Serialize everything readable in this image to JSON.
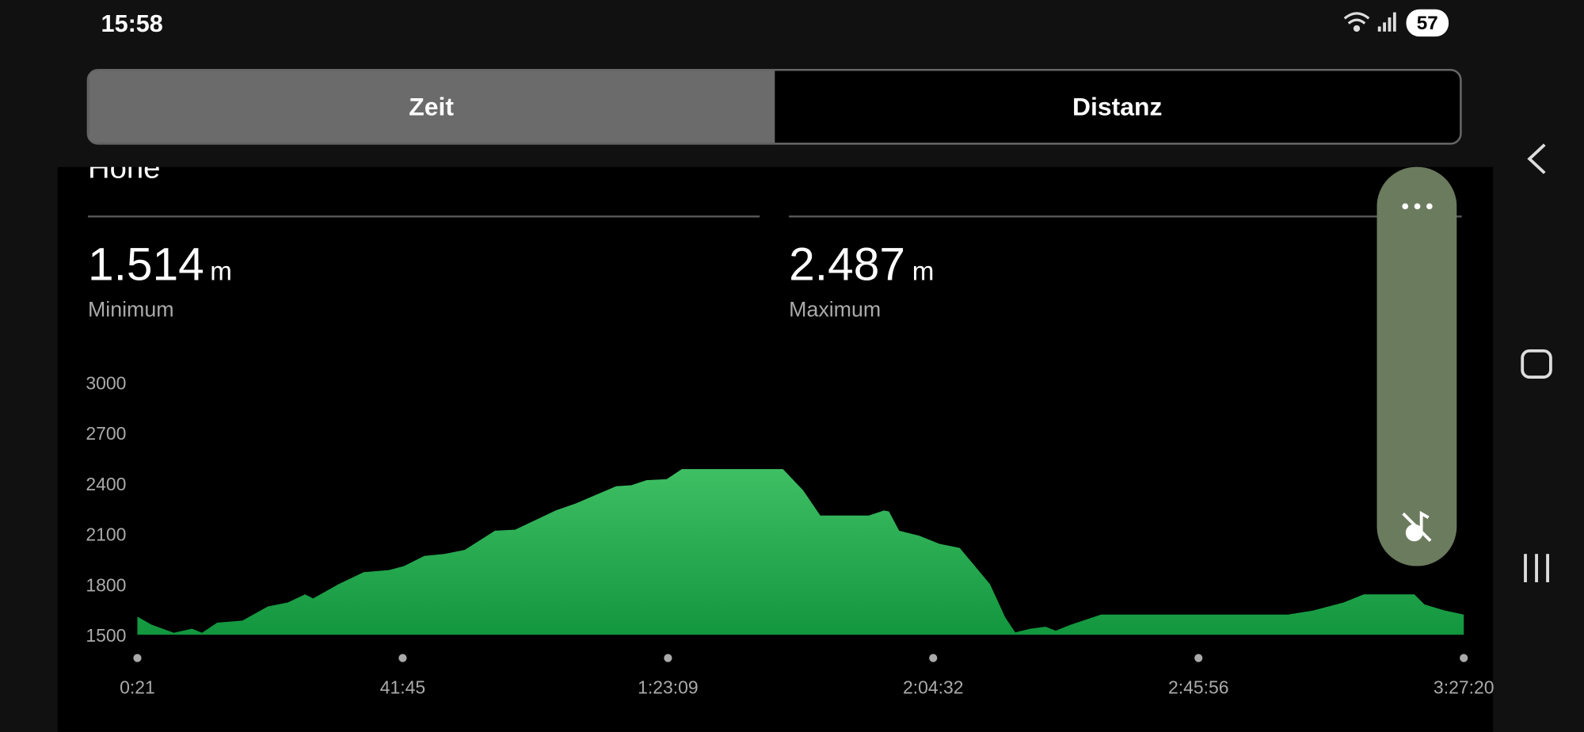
{
  "status_bar": {
    "time": "15:58",
    "battery": "57"
  },
  "tabs": [
    "Zeit",
    "Distanz"
  ],
  "section_title": "Höhe",
  "stats": [
    {
      "value": "1.514",
      "unit": "m",
      "label": "Minimum"
    },
    {
      "value": "2.487",
      "unit": "m",
      "label": "Maximum"
    }
  ],
  "chart_data": {
    "type": "area",
    "color": "#3fbf64",
    "x": [
      21,
      153,
      362,
      532,
      626,
      768,
      1005,
      1241,
      1430,
      1591,
      1667,
      1903,
      2140,
      2376,
      2518,
      2707,
      2896,
      3086,
      3369,
      3558,
      3937,
      4126,
      4504,
      4646,
      4788,
      4977,
      5119,
      6065,
      6254,
      6415,
      6869,
      7011,
      7058,
      7153,
      7342,
      7531,
      7720,
      7862,
      8004,
      8146,
      8240,
      8382,
      8524,
      8619,
      8761,
      9044,
      10085,
      10795,
      11031,
      11315,
      11504,
      11977,
      12072,
      12261,
      12440
    ],
    "values": [
      1608,
      1560,
      1512,
      1536,
      1512,
      1572,
      1584,
      1668,
      1692,
      1740,
      1716,
      1800,
      1872,
      1884,
      1908,
      1968,
      1980,
      2004,
      2118,
      2124,
      2238,
      2280,
      2382,
      2388,
      2418,
      2424,
      2484,
      2484,
      2358,
      2208,
      2208,
      2238,
      2232,
      2118,
      2088,
      2040,
      2016,
      1908,
      1800,
      1604,
      1514,
      1536,
      1548,
      1524,
      1560,
      1620,
      1620,
      1620,
      1644,
      1692,
      1740,
      1740,
      1680,
      1644,
      1620
    ],
    "xlim": [
      21,
      12440
    ],
    "ylim": [
      1500,
      3000
    ],
    "yticks": [
      1500,
      1800,
      2100,
      2400,
      2700,
      3000
    ],
    "xticks": [
      {
        "value": 21,
        "label": "0:21"
      },
      {
        "value": 2505,
        "label": "41:45"
      },
      {
        "value": 4989,
        "label": "1:23:09"
      },
      {
        "value": 7472,
        "label": "2:04:32"
      },
      {
        "value": 9956,
        "label": "2:45:56"
      },
      {
        "value": 12440,
        "label": "3:27:20"
      }
    ]
  }
}
